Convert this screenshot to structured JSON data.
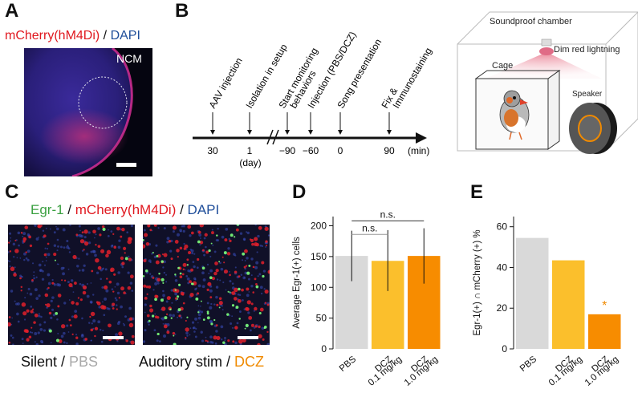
{
  "panel_a": {
    "letter": "A",
    "title_red": "mCherry(hM4Di)",
    "title_sep": " / ",
    "title_blue": "DAPI",
    "region_label": "NCM",
    "colors": {
      "red": "#e0181f",
      "blue": "#1f4e9a"
    }
  },
  "panel_b": {
    "letter": "B",
    "timeline_events": [
      {
        "label": "AAV injection",
        "tick": "30",
        "tick_sub": ""
      },
      {
        "label": "Isolation in setup",
        "tick": "1",
        "tick_sub": "(day)"
      },
      {
        "label": "Start monitoring behaviors",
        "label_line1": "Start monitoring",
        "label_line2": "behaviors",
        "tick": "−90",
        "tick_sub": ""
      },
      {
        "label": "Injection (PBS/DCZ)",
        "tick": "−60",
        "tick_sub": ""
      },
      {
        "label": "Song presentation",
        "tick": "0",
        "tick_sub": ""
      },
      {
        "label": "Fix & Immunostaining",
        "label_line1": "Fix &",
        "label_line2": "Immunostaining",
        "tick": "90",
        "tick_sub": "",
        "unit": "(min)"
      }
    ],
    "chamber_label": "Soundproof chamber",
    "light_label": "Dim red lightning",
    "cage_label": "Cage",
    "speaker_label": "Speaker"
  },
  "panel_c": {
    "letter": "C",
    "title_green": "Egr-1",
    "title_sep1": " / ",
    "title_red": "mCherry(hM4Di)",
    "title_sep2": " / ",
    "title_blue": "DAPI",
    "left_caption_a": "Silent",
    "left_caption_sep": " / ",
    "left_caption_b": "PBS",
    "right_caption_a": "Auditory stim",
    "right_caption_sep": " / ",
    "right_caption_b": "DCZ",
    "colors": {
      "green": "#3aa040",
      "red": "#e0181f",
      "blue": "#1f4e9a",
      "grey": "#a9a9a9",
      "orange": "#f08a00"
    }
  },
  "panel_d": {
    "letter": "D",
    "sig_top": "n.s.",
    "sig_inner": "n.s."
  },
  "panel_e": {
    "letter": "E",
    "star": "*"
  },
  "chart_data": [
    {
      "panel": "D",
      "type": "bar",
      "categories": [
        "PBS",
        "DCZ 0.1 mg/kg",
        "DCZ 1.0 mg/kg"
      ],
      "category_lines": [
        [
          "PBS"
        ],
        [
          "DCZ",
          "0.1 mg/kg"
        ],
        [
          "DCZ",
          "1.0 mg/kg"
        ]
      ],
      "values": [
        151,
        143,
        151
      ],
      "error_low": [
        110,
        94,
        106
      ],
      "error_high": [
        192,
        193,
        196
      ],
      "colors": [
        "#d9d9d9",
        "#fbbf2c",
        "#f78c00"
      ],
      "ylabel": "Average Egr-1(+) cells",
      "ylim": [
        0,
        215
      ],
      "yticks": [
        0,
        50,
        100,
        150,
        200
      ],
      "annotations": [
        "n.s.",
        "n.s."
      ]
    },
    {
      "panel": "E",
      "type": "bar",
      "categories": [
        "PBS",
        "DCZ 0.1 mg/kg",
        "DCZ 1.0 mg/kg"
      ],
      "category_lines": [
        [
          "PBS"
        ],
        [
          "DCZ",
          "0.1 mg/kg"
        ],
        [
          "DCZ",
          "1.0 mg/kg"
        ]
      ],
      "values": [
        54.5,
        43.5,
        17
      ],
      "colors": [
        "#d9d9d9",
        "#fbbf2c",
        "#f78c00"
      ],
      "ylabel": "Egr-1(+) ∩ mCherry (+) %",
      "ylim": [
        0,
        65
      ],
      "yticks": [
        0,
        20,
        40,
        60
      ],
      "annotations": [
        "*"
      ]
    }
  ]
}
